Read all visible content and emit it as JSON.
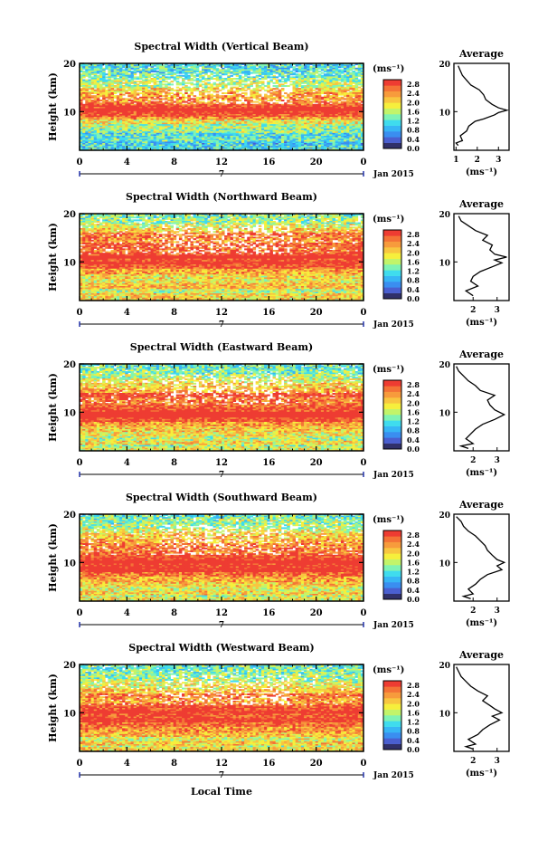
{
  "figure": {
    "xlabel_bottom": "Local Time",
    "date_label": "Jan 2015",
    "colorbar_unit": "(ms⁻¹)",
    "colorbar_ticks": [
      "0.0",
      "0.4",
      "0.8",
      "1.2",
      "1.6",
      "2.0",
      "2.4",
      "2.8"
    ],
    "colorbar_colors": [
      "#30306a",
      "#4a5fd0",
      "#3a8ef0",
      "#37b6f5",
      "#3fdcee",
      "#7ff3b4",
      "#c2f46a",
      "#f6ef3c",
      "#f8c640",
      "#f79b3c",
      "#f47336",
      "#ee3c32"
    ],
    "average_title": "Average",
    "average_xlabel": "(ms⁻¹)"
  },
  "chart_data": [
    {
      "type": "heatmap",
      "title": "Spectral Width (Vertical Beam)",
      "ylabel": "Height (km)",
      "xlim": [
        0,
        24
      ],
      "ylim": [
        2,
        20
      ],
      "xticks": [
        "0",
        "4",
        "8",
        "12",
        "16",
        "20",
        "0"
      ],
      "yticks": [
        "20",
        "10"
      ],
      "midlabel": "7",
      "avg": {
        "xlim": [
          0.9,
          3.5
        ],
        "xticks": [
          "1",
          "2",
          "3"
        ],
        "xtick_vals": [
          1,
          2,
          3
        ],
        "profile": [
          [
            1.1,
            3
          ],
          [
            1.0,
            3.5
          ],
          [
            1.3,
            4
          ],
          [
            1.2,
            5
          ],
          [
            1.5,
            6
          ],
          [
            1.6,
            7
          ],
          [
            1.9,
            8
          ],
          [
            2.3,
            8.5
          ],
          [
            2.8,
            9.3
          ],
          [
            3.0,
            9.8
          ],
          [
            3.4,
            10.3
          ],
          [
            3.0,
            10.8
          ],
          [
            2.7,
            11.5
          ],
          [
            2.4,
            12.5
          ],
          [
            2.3,
            13.5
          ],
          [
            2.1,
            14.5
          ],
          [
            1.7,
            15.5
          ],
          [
            1.5,
            16.5
          ],
          [
            1.3,
            17.5
          ],
          [
            1.2,
            18.5
          ],
          [
            1.1,
            19.5
          ]
        ]
      }
    },
    {
      "type": "heatmap",
      "title": "Spectral Width (Northward Beam)",
      "ylabel": "Height (km)",
      "xlim": [
        0,
        24
      ],
      "ylim": [
        2,
        20
      ],
      "xticks": [
        "0",
        "4",
        "8",
        "12",
        "16",
        "20",
        "0"
      ],
      "yticks": [
        "20",
        "10"
      ],
      "midlabel": "7",
      "avg": {
        "xlim": [
          1.2,
          3.5
        ],
        "xticks": [
          "2",
          "3"
        ],
        "xtick_vals": [
          2,
          3
        ],
        "profile": [
          [
            2.0,
            3
          ],
          [
            1.7,
            4
          ],
          [
            2.2,
            5
          ],
          [
            1.9,
            6
          ],
          [
            2.0,
            7
          ],
          [
            2.3,
            8
          ],
          [
            2.8,
            9
          ],
          [
            3.2,
            9.8
          ],
          [
            2.9,
            10.4
          ],
          [
            3.4,
            11
          ],
          [
            2.9,
            11.6
          ],
          [
            2.7,
            12.5
          ],
          [
            2.8,
            13.5
          ],
          [
            2.4,
            14.5
          ],
          [
            2.6,
            15.5
          ],
          [
            2.1,
            16.5
          ],
          [
            1.8,
            17.5
          ],
          [
            1.5,
            18.5
          ],
          [
            1.4,
            19.5
          ]
        ]
      }
    },
    {
      "type": "heatmap",
      "title": "Spectral Width (Eastward Beam)",
      "ylabel": "Height (km)",
      "xlim": [
        0,
        24
      ],
      "ylim": [
        2,
        20
      ],
      "xticks": [
        "0",
        "4",
        "8",
        "12",
        "16",
        "20",
        "0"
      ],
      "yticks": [
        "20",
        "10"
      ],
      "midlabel": "7",
      "avg": {
        "xlim": [
          1.2,
          3.5
        ],
        "xticks": [
          "2",
          "3"
        ],
        "xtick_vals": [
          2,
          3
        ],
        "profile": [
          [
            1.8,
            2.5
          ],
          [
            1.5,
            3
          ],
          [
            2.0,
            3.5
          ],
          [
            1.7,
            4.5
          ],
          [
            1.9,
            5.5
          ],
          [
            2.1,
            6.5
          ],
          [
            2.4,
            7.5
          ],
          [
            2.9,
            8.5
          ],
          [
            3.3,
            9.5
          ],
          [
            2.9,
            10.5
          ],
          [
            2.7,
            11.5
          ],
          [
            2.6,
            12.5
          ],
          [
            2.9,
            13.5
          ],
          [
            2.3,
            14.5
          ],
          [
            2.1,
            15.5
          ],
          [
            1.8,
            16.5
          ],
          [
            1.6,
            17.5
          ],
          [
            1.4,
            18.5
          ],
          [
            1.3,
            19.5
          ]
        ]
      }
    },
    {
      "type": "heatmap",
      "title": "Spectral Width (Southward Beam)",
      "ylabel": "Height (km)",
      "xlim": [
        0,
        24
      ],
      "ylim": [
        2,
        20
      ],
      "xticks": [
        "0",
        "4",
        "8",
        "12",
        "16",
        "20",
        "0"
      ],
      "yticks": [
        "20",
        "10"
      ],
      "midlabel": "7",
      "avg": {
        "xlim": [
          1.2,
          3.5
        ],
        "xticks": [
          "2",
          "3"
        ],
        "xtick_vals": [
          2,
          3
        ],
        "profile": [
          [
            1.9,
            2.5
          ],
          [
            1.6,
            3
          ],
          [
            2.0,
            3.5
          ],
          [
            1.8,
            4.5
          ],
          [
            2.1,
            5.5
          ],
          [
            2.3,
            6.5
          ],
          [
            2.6,
            7.5
          ],
          [
            3.2,
            8.5
          ],
          [
            3.0,
            9.3
          ],
          [
            3.3,
            10
          ],
          [
            3.0,
            10.6
          ],
          [
            2.8,
            11.5
          ],
          [
            2.6,
            12.5
          ],
          [
            2.5,
            13.5
          ],
          [
            2.3,
            14.5
          ],
          [
            2.1,
            15.5
          ],
          [
            1.8,
            16.5
          ],
          [
            1.6,
            17.5
          ],
          [
            1.5,
            18.5
          ],
          [
            1.3,
            19.5
          ]
        ]
      }
    },
    {
      "type": "heatmap",
      "title": "Spectral Width (Westward Beam)",
      "ylabel": "Height (km)",
      "xlim": [
        0,
        24
      ],
      "ylim": [
        2,
        20
      ],
      "xticks": [
        "0",
        "4",
        "8",
        "12",
        "16",
        "20",
        "0"
      ],
      "yticks": [
        "20",
        "10"
      ],
      "midlabel": "7",
      "avg": {
        "xlim": [
          1.2,
          3.5
        ],
        "xticks": [
          "2",
          "3"
        ],
        "xtick_vals": [
          2,
          3
        ],
        "profile": [
          [
            2.0,
            2.5
          ],
          [
            1.7,
            3
          ],
          [
            2.1,
            3.5
          ],
          [
            1.8,
            4.5
          ],
          [
            2.2,
            5.5
          ],
          [
            2.4,
            6.5
          ],
          [
            2.7,
            7.5
          ],
          [
            3.1,
            8.5
          ],
          [
            2.8,
            9.3
          ],
          [
            3.2,
            10
          ],
          [
            2.9,
            10.8
          ],
          [
            2.7,
            11.5
          ],
          [
            2.4,
            12.5
          ],
          [
            2.6,
            13.5
          ],
          [
            2.2,
            14.5
          ],
          [
            1.9,
            15.5
          ],
          [
            1.7,
            16.5
          ],
          [
            1.5,
            17.5
          ],
          [
            1.4,
            18.5
          ],
          [
            1.3,
            19.5
          ]
        ]
      }
    }
  ]
}
